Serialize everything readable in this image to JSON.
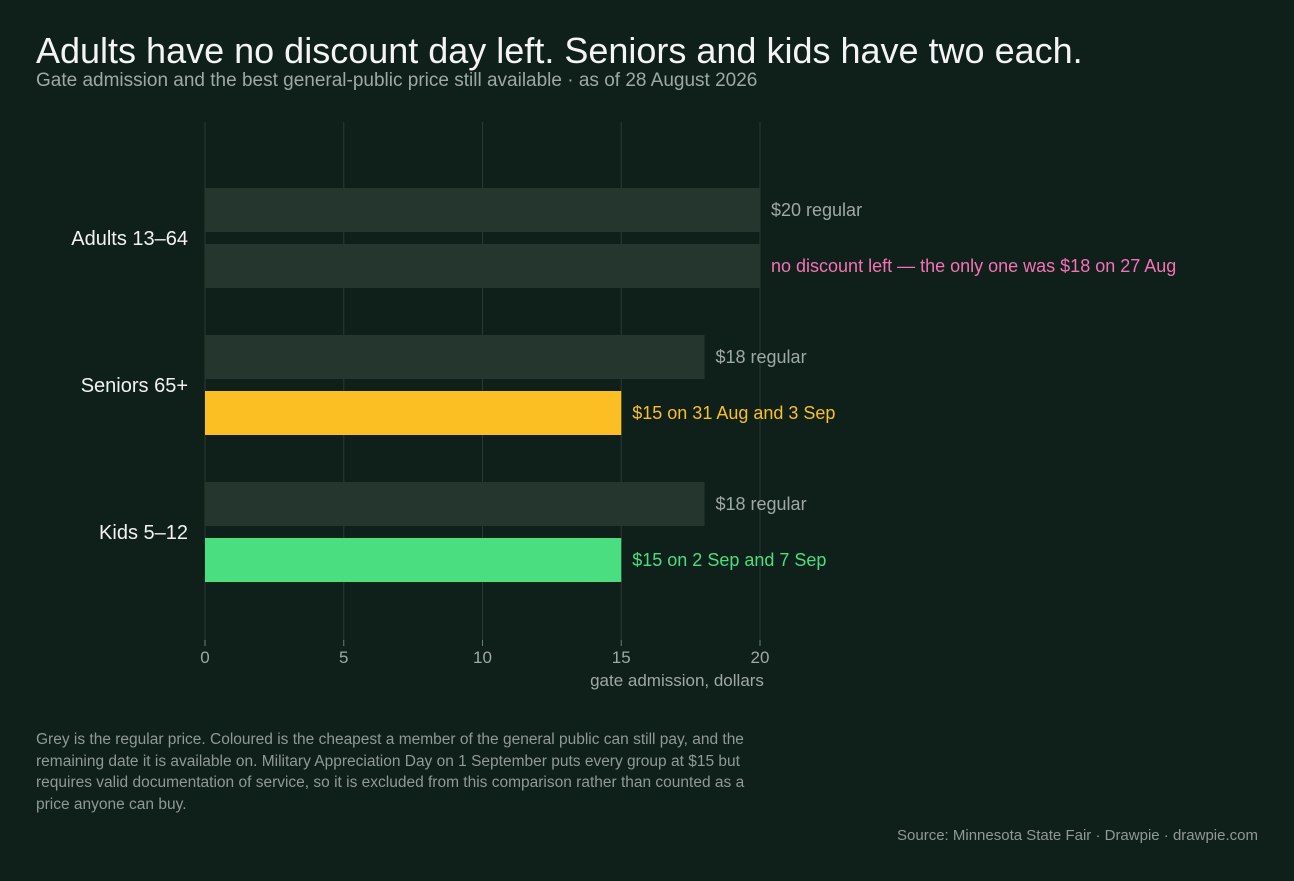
{
  "title": "Adults have no discount day left. Seniors and kids have two each.",
  "subtitle": "Gate admission and the best general-public price still available  ·  as of 28 August 2026",
  "footnote": "Grey is the regular price. Coloured is the cheapest a member of the general public can still pay, and the remaining date it is available on. Military Appreciation Day on 1 September puts every group at $15 but requires valid documentation of service, so it is excluded from this comparison rather than counted as a price anyone can buy.",
  "source": "Source: Minnesota State Fair  ·  Drawpie · drawpie.com",
  "colors": {
    "background": "#0f1f1a",
    "regular": "#24362e",
    "adult_note": "#f472b6",
    "senior": "#fbbf24",
    "kid": "#4ade80",
    "muted_text": "#9ea9a4",
    "grid": "#2a3a33"
  },
  "chart_data": {
    "type": "bar",
    "orientation": "horizontal",
    "categories": [
      "Adults 13–64",
      "Seniors 65+",
      "Kids 5–12"
    ],
    "series": [],
    "bars": [
      {
        "category": "Adults 13–64",
        "kind": "regular",
        "value": 20,
        "label": "$20 regular",
        "color": "#24362e",
        "label_color": "#9ea9a4"
      },
      {
        "category": "Adults 13–64",
        "kind": "best",
        "value": 20,
        "label": "no discount left — the only one was $18 on 27 Aug",
        "color": "#24362e",
        "label_color": "#f472b6"
      },
      {
        "category": "Seniors 65+",
        "kind": "regular",
        "value": 18,
        "label": "$18 regular",
        "color": "#24362e",
        "label_color": "#9ea9a4"
      },
      {
        "category": "Seniors 65+",
        "kind": "best",
        "value": 15,
        "label": "$15 on 31 Aug and 3 Sep",
        "color": "#fbbf24",
        "label_color": "#fbbf24"
      },
      {
        "category": "Kids 5–12",
        "kind": "regular",
        "value": 18,
        "label": "$18 regular",
        "color": "#24362e",
        "label_color": "#9ea9a4"
      },
      {
        "category": "Kids 5–12",
        "kind": "best",
        "value": 15,
        "label": "$15 on 2 Sep and 7 Sep",
        "color": "#4ade80",
        "label_color": "#4ade80"
      }
    ],
    "xlabel": "gate admission, dollars",
    "ylabel": "",
    "xlim": [
      0,
      20
    ],
    "xticks": [
      0,
      5,
      10,
      15,
      20
    ],
    "grid": true,
    "legend": "none"
  }
}
